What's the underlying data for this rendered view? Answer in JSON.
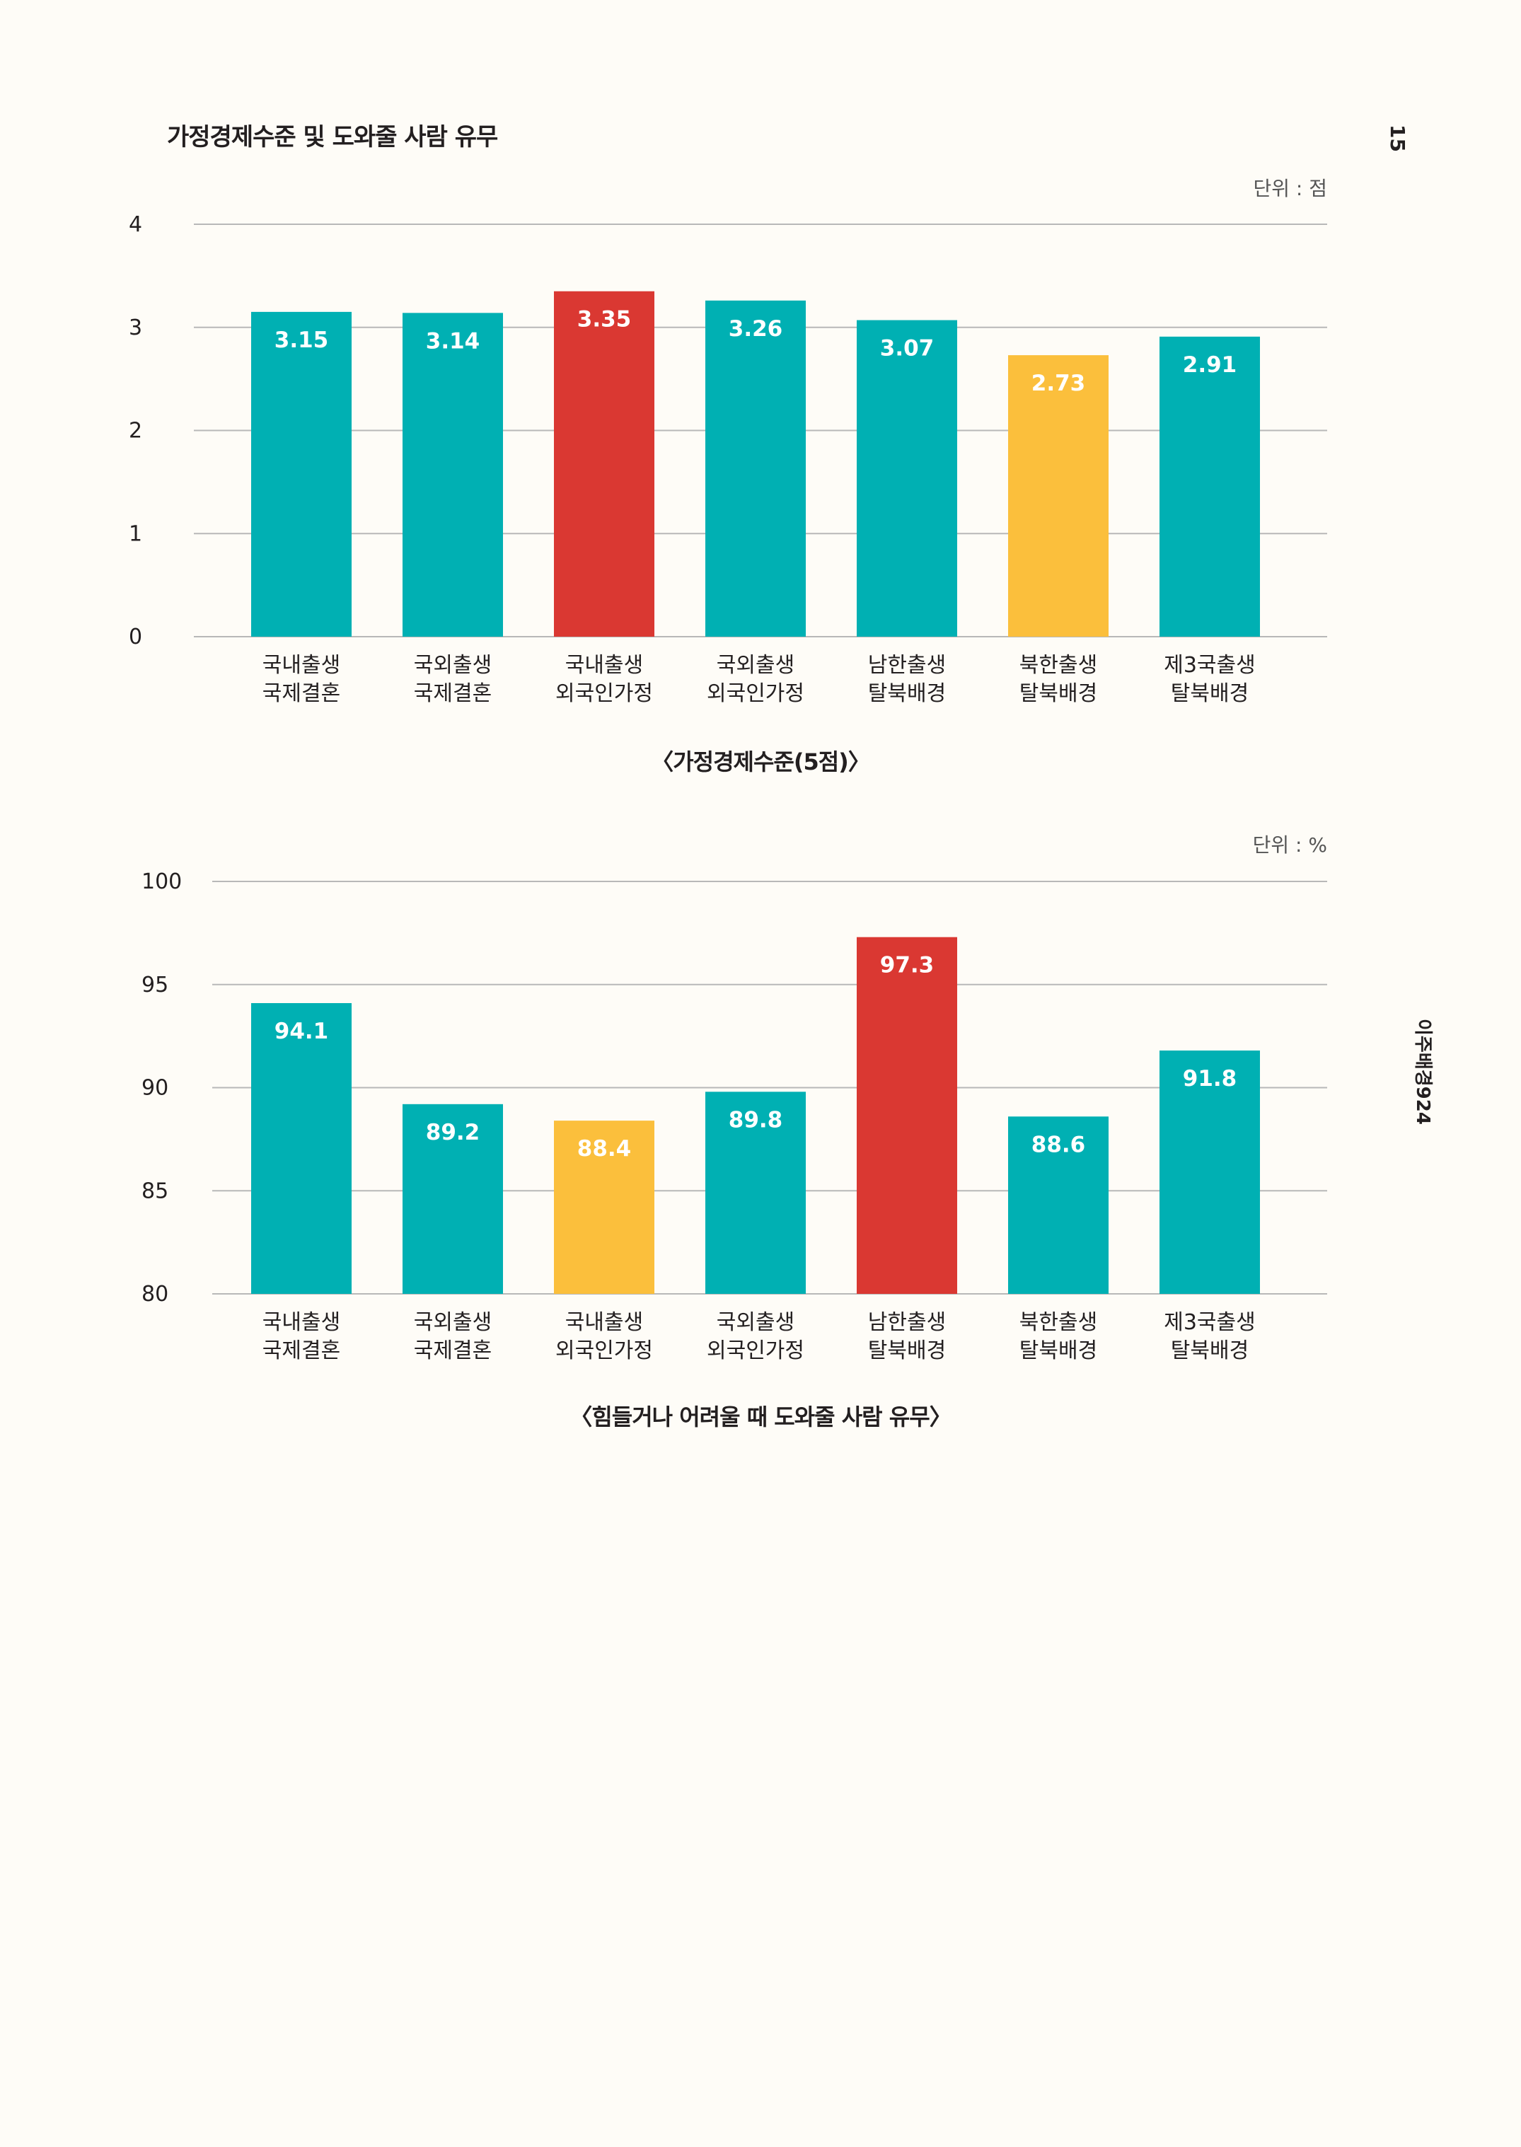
{
  "page": {
    "title": "가정경제수준 및 도와줄 사람 유무",
    "page_number": "15",
    "side_label": "이주배경924"
  },
  "colors": {
    "teal": "#00b0b3",
    "red": "#da3832",
    "yellow": "#fbbf3c",
    "gridline": "#b8b8b8",
    "value_label": "#ffffff"
  },
  "chart_data": [
    {
      "type": "bar",
      "unit_label": "단위 : 점",
      "caption": "〈가정경제수준(5점)〉",
      "categories": [
        [
          "국내출생",
          "국제결혼"
        ],
        [
          "국외출생",
          "국제결혼"
        ],
        [
          "국내출생",
          "외국인가정"
        ],
        [
          "국외출생",
          "외국인가정"
        ],
        [
          "남한출생",
          "탈북배경"
        ],
        [
          "북한출생",
          "탈북배경"
        ],
        [
          "제3국출생",
          "탈북배경"
        ]
      ],
      "values": [
        3.15,
        3.14,
        3.35,
        3.26,
        3.07,
        2.73,
        2.91
      ],
      "value_labels": [
        "3.15",
        "3.14",
        "3.35",
        "3.26",
        "3.07",
        "2.73",
        "2.91"
      ],
      "bar_colors": [
        "teal",
        "teal",
        "red",
        "teal",
        "teal",
        "yellow",
        "teal"
      ],
      "ylim": [
        0,
        4
      ],
      "yticks": [
        "0",
        "1",
        "2",
        "3",
        "4"
      ],
      "grid": true
    },
    {
      "type": "bar",
      "unit_label": "단위 : %",
      "caption": "〈힘들거나 어려울 때 도와줄 사람 유무〉",
      "categories": [
        [
          "국내출생",
          "국제결혼"
        ],
        [
          "국외출생",
          "국제결혼"
        ],
        [
          "국내출생",
          "외국인가정"
        ],
        [
          "국외출생",
          "외국인가정"
        ],
        [
          "남한출생",
          "탈북배경"
        ],
        [
          "북한출생",
          "탈북배경"
        ],
        [
          "제3국출생",
          "탈북배경"
        ]
      ],
      "values": [
        94.1,
        89.2,
        88.4,
        89.8,
        97.3,
        88.6,
        91.8
      ],
      "value_labels": [
        "94.1",
        "89.2",
        "88.4",
        "89.8",
        "97.3",
        "88.6",
        "91.8"
      ],
      "bar_colors": [
        "teal",
        "teal",
        "yellow",
        "teal",
        "red",
        "teal",
        "teal"
      ],
      "ylim": [
        80,
        100
      ],
      "yticks": [
        "80",
        "85",
        "90",
        "95",
        "100"
      ],
      "grid": true
    }
  ]
}
